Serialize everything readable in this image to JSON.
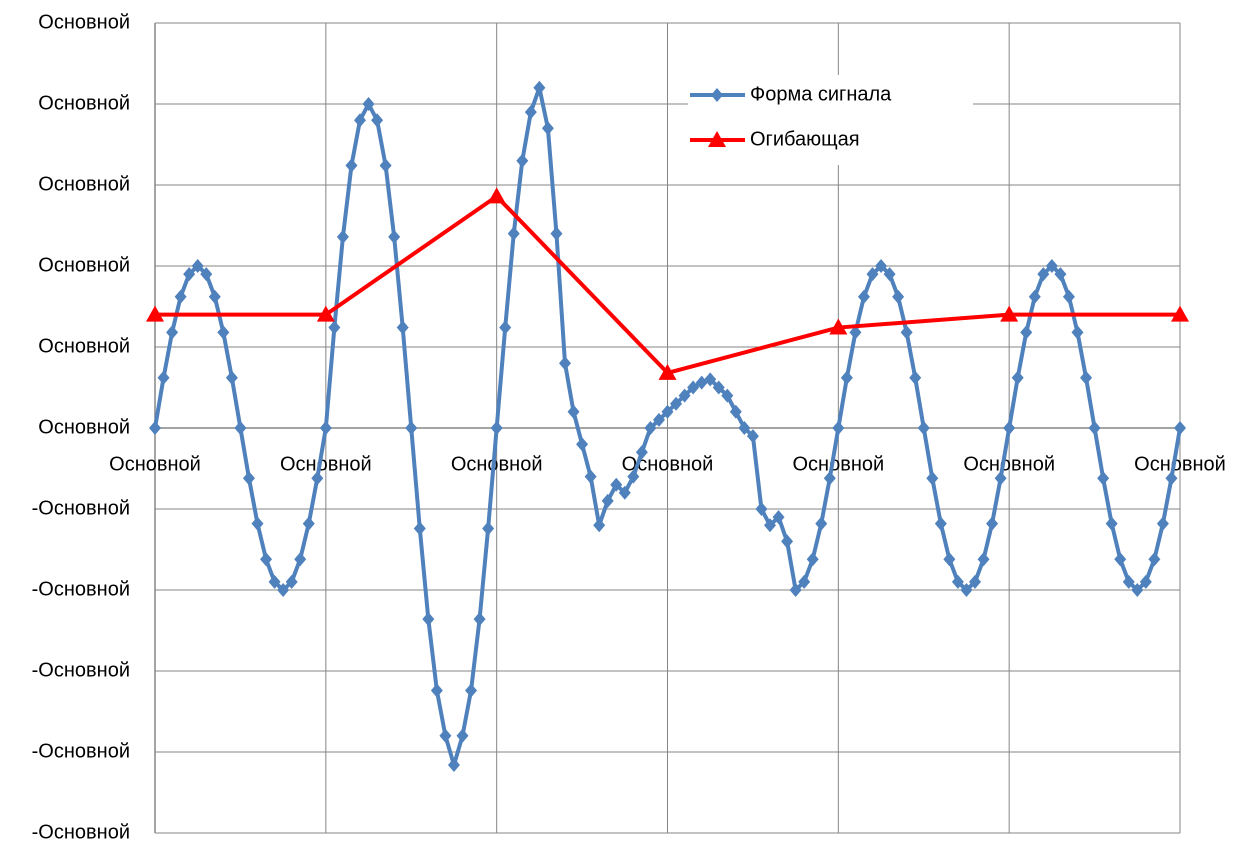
{
  "chart_data": {
    "type": "line",
    "xlim": [
      0,
      6
    ],
    "xticks": [
      {
        "value": 0,
        "label": "Основной"
      },
      {
        "value": 1,
        "label": "Основной"
      },
      {
        "value": 2,
        "label": "Основной"
      },
      {
        "value": 3,
        "label": "Основной"
      },
      {
        "value": 4,
        "label": "Основной"
      },
      {
        "value": 5,
        "label": "Основной"
      },
      {
        "value": 6,
        "label": "Основной"
      }
    ],
    "ylim": [
      -2.5,
      2.5
    ],
    "yticks": [
      {
        "value": -2.5,
        "label": "-Основной"
      },
      {
        "value": -2,
        "label": "-Основной"
      },
      {
        "value": -1.5,
        "label": "-Основной"
      },
      {
        "value": -1,
        "label": "-Основной"
      },
      {
        "value": -0.5,
        "label": "-Основной"
      },
      {
        "value": 0,
        "label": "Основной"
      },
      {
        "value": 0.5,
        "label": "Основной"
      },
      {
        "value": 1,
        "label": "Основной"
      },
      {
        "value": 1.5,
        "label": "Основной"
      },
      {
        "value": 2,
        "label": "Основной"
      },
      {
        "value": 2.5,
        "label": "Основной"
      }
    ],
    "grid": true,
    "legend": "upper right",
    "series": [
      {
        "name": "Форма сигнала",
        "color": "#4f81bd",
        "marker": "diamond",
        "x": [
          0,
          0.05,
          0.1,
          0.15,
          0.2,
          0.25,
          0.3,
          0.35,
          0.4,
          0.45,
          0.5,
          0.55,
          0.6,
          0.65,
          0.7,
          0.75,
          0.8,
          0.85,
          0.9,
          0.95,
          1,
          1.05,
          1.1,
          1.15,
          1.2,
          1.25,
          1.3,
          1.35,
          1.4,
          1.45,
          1.5,
          1.55,
          1.6,
          1.65,
          1.7,
          1.75,
          1.8,
          1.85,
          1.9,
          1.95,
          2,
          2.05,
          2.1,
          2.15,
          2.2,
          2.25,
          2.3,
          2.35,
          2.4,
          2.45,
          2.5,
          2.55,
          2.6,
          2.65,
          2.7,
          2.75,
          2.8,
          2.85,
          2.9,
          2.95,
          3,
          3.05,
          3.1,
          3.15,
          3.2,
          3.25,
          3.3,
          3.35,
          3.4,
          3.45,
          3.5,
          3.55,
          3.6,
          3.65,
          3.7,
          3.75,
          3.8,
          3.85,
          3.9,
          3.95,
          4,
          4.05,
          4.1,
          4.15,
          4.2,
          4.25,
          4.3,
          4.35,
          4.4,
          4.45,
          4.5,
          4.55,
          4.6,
          4.65,
          4.7,
          4.75,
          4.8,
          4.85,
          4.9,
          4.95,
          5,
          5.05,
          5.1,
          5.15,
          5.2,
          5.25,
          5.3,
          5.35,
          5.4,
          5.45,
          5.5,
          5.55,
          5.6,
          5.65,
          5.7,
          5.75,
          5.8,
          5.85,
          5.9,
          5.95,
          6
        ],
        "values": [
          0,
          0.31,
          0.59,
          0.81,
          0.95,
          1,
          0.95,
          0.81,
          0.59,
          0.31,
          0,
          -0.31,
          -0.59,
          -0.81,
          -0.95,
          -1,
          -0.95,
          -0.81,
          -0.59,
          -0.31,
          0,
          0.62,
          1.18,
          1.62,
          1.9,
          2,
          1.9,
          1.62,
          1.18,
          0.62,
          0,
          -0.62,
          -1.18,
          -1.62,
          -1.9,
          -2.08,
          -1.9,
          -1.62,
          -1.18,
          -0.62,
          0,
          0.62,
          1.2,
          1.65,
          1.95,
          2.1,
          1.85,
          1.2,
          0.4,
          0.1,
          -0.1,
          -0.3,
          -0.6,
          -0.45,
          -0.35,
          -0.4,
          -0.3,
          -0.15,
          0,
          0.05,
          0.1,
          0.15,
          0.2,
          0.25,
          0.28,
          0.3,
          0.25,
          0.2,
          0.1,
          0,
          -0.05,
          -0.5,
          -0.6,
          -0.55,
          -0.7,
          -1,
          -0.95,
          -0.81,
          -0.59,
          -0.31,
          0,
          0.31,
          0.59,
          0.81,
          0.95,
          1,
          0.95,
          0.81,
          0.59,
          0.31,
          0,
          -0.31,
          -0.59,
          -0.81,
          -0.95,
          -1,
          -0.95,
          -0.81,
          -0.59,
          -0.31,
          0,
          0.31,
          0.59,
          0.81,
          0.95,
          1,
          0.95,
          0.81,
          0.59,
          0.31,
          0,
          -0.31,
          -0.59,
          -0.81,
          -0.95,
          -1,
          -0.95,
          -0.81,
          -0.59,
          -0.31,
          0
        ]
      },
      {
        "name": "Огибающая",
        "color": "#ff0000",
        "marker": "triangle",
        "x": [
          0,
          1,
          2,
          3,
          4,
          5,
          6
        ],
        "values": [
          0.7,
          0.7,
          1.43,
          0.34,
          0.62,
          0.7,
          0.7
        ]
      }
    ]
  }
}
